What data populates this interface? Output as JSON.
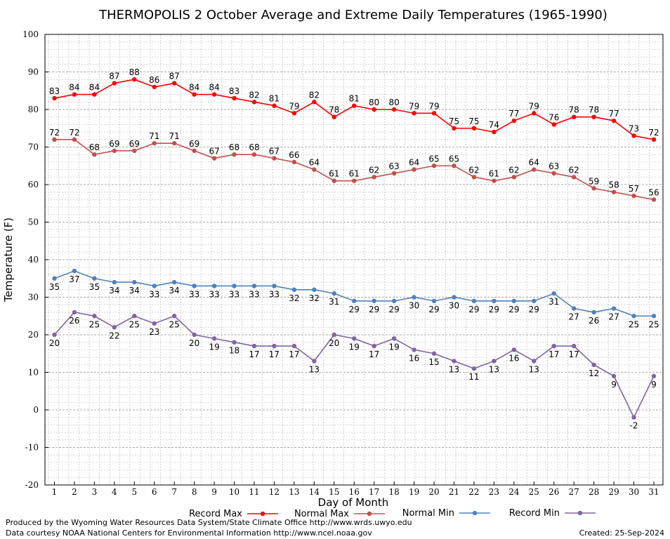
{
  "chart_data": {
    "type": "line",
    "title": "THERMOPOLIS 2 October Average and Extreme Daily Temperatures (1965-1990)",
    "xlabel": "Day of Month",
    "ylabel": "Temperature (F)",
    "ylim": [
      -20,
      100
    ],
    "yticks": [
      -20,
      -10,
      0,
      10,
      20,
      30,
      40,
      50,
      60,
      70,
      80,
      90,
      100
    ],
    "x": [
      1,
      2,
      3,
      4,
      5,
      6,
      7,
      8,
      9,
      10,
      11,
      12,
      13,
      14,
      15,
      16,
      17,
      18,
      19,
      20,
      21,
      22,
      23,
      24,
      25,
      26,
      27,
      28,
      29,
      30,
      31
    ],
    "grid": true,
    "legend_position": "bottom",
    "series": [
      {
        "name": "Record Max",
        "color": "#ff0000",
        "values": [
          83,
          84,
          84,
          87,
          88,
          86,
          87,
          84,
          84,
          83,
          82,
          81,
          79,
          82,
          78,
          81,
          80,
          80,
          79,
          79,
          75,
          75,
          74,
          77,
          79,
          76,
          78,
          78,
          77,
          73,
          72
        ]
      },
      {
        "name": "Normal Max",
        "color": "#c0504d",
        "values": [
          72,
          72,
          68,
          69,
          69,
          71,
          71,
          69,
          67,
          68,
          68,
          67,
          66,
          64,
          61,
          61,
          62,
          63,
          64,
          65,
          65,
          62,
          61,
          62,
          64,
          63,
          62,
          59,
          58,
          57,
          56
        ]
      },
      {
        "name": "Normal Min",
        "color": "#4f81bd",
        "values": [
          35,
          37,
          35,
          34,
          34,
          33,
          34,
          33,
          33,
          33,
          33,
          33,
          32,
          32,
          31,
          29,
          29,
          29,
          30,
          29,
          30,
          29,
          29,
          29,
          29,
          31,
          27,
          26,
          27,
          25,
          25
        ]
      },
      {
        "name": "Record Min",
        "color": "#8064a2",
        "values": [
          20,
          26,
          25,
          22,
          25,
          23,
          25,
          20,
          19,
          18,
          17,
          17,
          17,
          13,
          20,
          19,
          17,
          19,
          16,
          15,
          13,
          11,
          13,
          16,
          13,
          17,
          17,
          12,
          9,
          -2,
          9
        ]
      }
    ]
  },
  "footer": {
    "produced_by": "Produced by the Wyoming Water Resources Data System/State Climate Office http://www.wrds.uwyo.edu",
    "courtesy": "Data courtesy NOAA National Centers for Environmental Information http://www.ncei.noaa.gov",
    "created": "Created:  25-Sep-2024"
  }
}
